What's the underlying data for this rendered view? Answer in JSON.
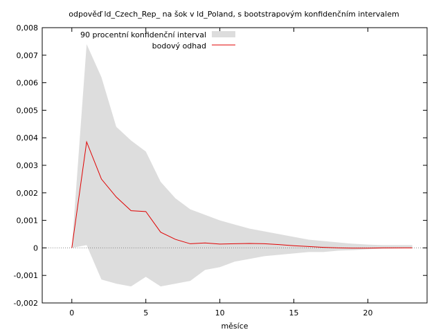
{
  "chart_data": {
    "type": "line",
    "title": "odpověď ld_Czech_Rep_ na šok v ld_Poland, s bootstrapovým konfidenčním intervalem",
    "xlabel": "měsíce",
    "ylabel": "",
    "xlim": [
      -2,
      24
    ],
    "ylim": [
      -0.002,
      0.008
    ],
    "x_ticks": [
      0,
      5,
      10,
      15,
      20
    ],
    "x_tick_labels": [
      "0",
      "5",
      "10",
      "15",
      "20"
    ],
    "y_ticks": [
      -0.002,
      -0.001,
      0,
      0.001,
      0.002,
      0.003,
      0.004,
      0.005,
      0.006,
      0.007,
      0.008
    ],
    "y_tick_labels": [
      "-0,002",
      "-0,001",
      "0",
      "0,001",
      "0,002",
      "0,003",
      "0,004",
      "0,005",
      "0,006",
      "0,007",
      "0,008"
    ],
    "x": [
      0,
      1,
      2,
      3,
      4,
      5,
      6,
      7,
      8,
      9,
      10,
      11,
      12,
      13,
      14,
      15,
      16,
      17,
      18,
      19,
      20,
      21,
      22,
      23
    ],
    "series": [
      {
        "name": "90 procentní konfidenční interval",
        "kind": "band",
        "color": "#dddddd",
        "upper": [
          0,
          0.0074,
          0.0062,
          0.0044,
          0.0039,
          0.0035,
          0.0024,
          0.0018,
          0.0014,
          0.0012,
          0.001,
          0.00085,
          0.0007,
          0.0006,
          0.0005,
          0.0004,
          0.0003,
          0.00025,
          0.0002,
          0.00015,
          0.00012,
          0.0001,
          0.0001,
          0.0001
        ],
        "lower": [
          0,
          0.0001,
          -0.00115,
          -0.0013,
          -0.0014,
          -0.00105,
          -0.0014,
          -0.0013,
          -0.0012,
          -0.0008,
          -0.0007,
          -0.0005,
          -0.0004,
          -0.0003,
          -0.00025,
          -0.0002,
          -0.00015,
          -0.00015,
          -0.0001,
          -8e-05,
          -5e-05,
          -3e-05,
          -2e-05,
          -1e-05
        ]
      },
      {
        "name": "bodový odhad",
        "kind": "line",
        "color": "#e00000",
        "values": [
          0,
          0.00385,
          0.0025,
          0.00185,
          0.00135,
          0.00132,
          0.00057,
          0.00031,
          0.00015,
          0.00018,
          0.00014,
          0.00015,
          0.00016,
          0.00015,
          0.00012,
          8e-05,
          5e-05,
          2e-05,
          0.0,
          -1e-05,
          -1e-05,
          0.0,
          0.0,
          0.0
        ]
      }
    ],
    "zero_line": true,
    "grid": false,
    "legend_position": "top-center"
  }
}
